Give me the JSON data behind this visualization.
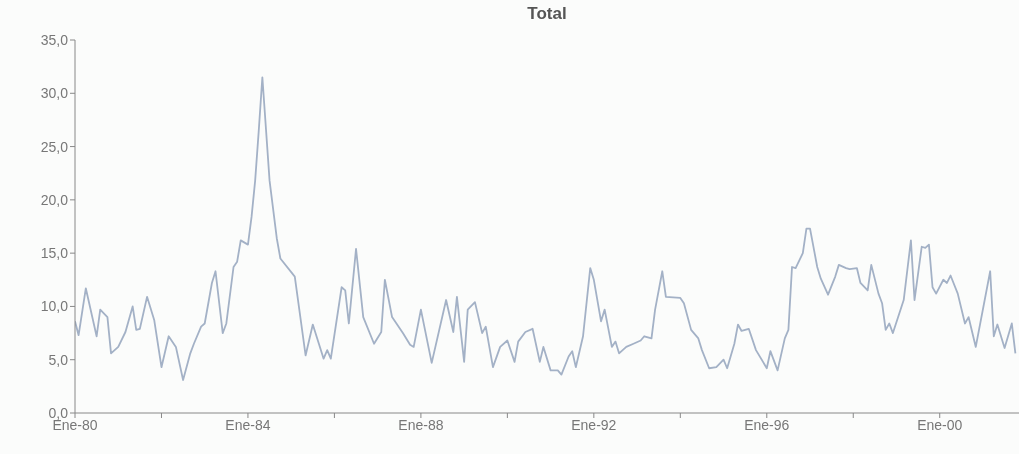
{
  "chart_data": {
    "type": "line",
    "title": "Total",
    "x": [
      "1980-01",
      "1980-02",
      "1980-04",
      "1980-07",
      "1980-08",
      "1980-10",
      "1980-11",
      "1981-01",
      "1981-03",
      "1981-05",
      "1981-06",
      "1981-07",
      "1981-09",
      "1981-11",
      "1982-01",
      "1982-03",
      "1982-05",
      "1982-07",
      "1982-09",
      "1982-10",
      "1982-12",
      "1983-01",
      "1983-03",
      "1983-04",
      "1983-06",
      "1983-07",
      "1983-09",
      "1983-10",
      "1983-11",
      "1984-01",
      "1984-02",
      "1984-03",
      "1984-04",
      "1984-05",
      "1984-07",
      "1984-09",
      "1984-10",
      "1985-02",
      "1985-05",
      "1985-07",
      "1985-10",
      "1985-11",
      "1985-12",
      "1986-03",
      "1986-04",
      "1986-05",
      "1986-07",
      "1986-09",
      "1986-12",
      "1987-02",
      "1987-03",
      "1987-05",
      "1987-08",
      "1987-10",
      "1987-11",
      "1988-01",
      "1988-04",
      "1988-08",
      "1988-10",
      "1988-11",
      "1989-01",
      "1989-02",
      "1989-04",
      "1989-06",
      "1989-07",
      "1989-09",
      "1989-11",
      "1990-01",
      "1990-03",
      "1990-04",
      "1990-06",
      "1990-08",
      "1990-10",
      "1990-11",
      "1991-01",
      "1991-03",
      "1991-04",
      "1991-06",
      "1991-07",
      "1991-08",
      "1991-10",
      "1991-12",
      "1992-01",
      "1992-03",
      "1992-04",
      "1992-06",
      "1992-07",
      "1992-08",
      "1992-10",
      "1992-12",
      "1993-02",
      "1993-03",
      "1993-05",
      "1993-06",
      "1993-08",
      "1993-09",
      "1994-01",
      "1994-02",
      "1994-04",
      "1994-06",
      "1994-07",
      "1994-09",
      "1994-11",
      "1995-01",
      "1995-02",
      "1995-04",
      "1995-05",
      "1995-06",
      "1995-08",
      "1995-10",
      "1996-01",
      "1996-02",
      "1996-04",
      "1996-06",
      "1996-07",
      "1996-08",
      "1996-09",
      "1996-11",
      "1996-12",
      "1997-01",
      "1997-03",
      "1997-04",
      "1997-06",
      "1997-08",
      "1997-09",
      "1997-11",
      "1997-12",
      "1998-02",
      "1998-03",
      "1998-05",
      "1998-06",
      "1998-08",
      "1998-09",
      "1998-10",
      "1998-11",
      "1998-12",
      "1999-03",
      "1999-05",
      "1999-06",
      "1999-08",
      "1999-09",
      "1999-10",
      "1999-11",
      "1999-12",
      "2000-02",
      "2000-03",
      "2000-04",
      "2000-06",
      "2000-08",
      "2000-09",
      "2000-11",
      "2001-03",
      "2001-04",
      "2001-05",
      "2001-07",
      "2001-09",
      "2001-10"
    ],
    "series": [
      {
        "color": "#a3b1c6",
        "values": [
          8.6,
          7.3,
          11.7,
          7.2,
          9.7,
          9.0,
          5.6,
          6.2,
          7.6,
          10.0,
          7.8,
          7.9,
          10.9,
          8.7,
          4.3,
          7.2,
          6.2,
          3.1,
          5.6,
          6.5,
          8.1,
          8.4,
          12.2,
          13.3,
          7.5,
          8.4,
          13.7,
          14.2,
          16.2,
          15.8,
          18.4,
          21.8,
          26.5,
          31.5,
          21.8,
          16.4,
          14.5,
          12.8,
          5.4,
          8.3,
          5.1,
          5.9,
          5.1,
          11.8,
          11.5,
          8.4,
          15.4,
          9.0,
          6.5,
          7.6,
          12.5,
          9.0,
          7.5,
          6.4,
          6.2,
          9.7,
          4.7,
          10.6,
          7.6,
          10.9,
          4.8,
          9.7,
          10.4,
          7.5,
          8.1,
          4.3,
          6.2,
          6.8,
          4.8,
          6.7,
          7.6,
          7.9,
          4.8,
          6.2,
          4.0,
          4.0,
          3.6,
          5.3,
          5.8,
          4.3,
          7.2,
          13.6,
          12.5,
          8.6,
          9.7,
          6.2,
          6.7,
          5.6,
          6.2,
          6.5,
          6.8,
          7.2,
          7.0,
          9.7,
          13.3,
          10.9,
          10.8,
          10.3,
          7.8,
          7.0,
          5.9,
          4.2,
          4.3,
          5.0,
          4.2,
          6.5,
          8.3,
          7.7,
          7.9,
          5.9,
          4.2,
          5.8,
          4.0,
          7.0,
          7.8,
          13.7,
          13.6,
          15.0,
          17.3,
          17.3,
          13.7,
          12.6,
          11.1,
          12.8,
          13.9,
          13.6,
          13.5,
          13.6,
          12.2,
          11.5,
          13.9,
          11.2,
          10.3,
          7.8,
          8.4,
          7.5,
          10.6,
          16.2,
          10.6,
          15.6,
          15.5,
          15.8,
          11.8,
          11.2,
          12.5,
          12.2,
          12.9,
          11.2,
          8.4,
          9.0,
          6.2,
          13.3,
          7.2,
          8.3,
          6.1,
          8.4,
          5.6
        ]
      }
    ],
    "xlim": [
      "1980-01",
      "2001-11"
    ],
    "xticks": [
      {
        "value": "1980-01",
        "label": "Ene-80"
      },
      {
        "value": "1982-01",
        "label": null
      },
      {
        "value": "1984-01",
        "label": "Ene-84"
      },
      {
        "value": "1986-01",
        "label": null
      },
      {
        "value": "1988-01",
        "label": "Ene-88"
      },
      {
        "value": "1990-01",
        "label": null
      },
      {
        "value": "1992-01",
        "label": "Ene-92"
      },
      {
        "value": "1994-01",
        "label": null
      },
      {
        "value": "1996-01",
        "label": "Ene-96"
      },
      {
        "value": "1998-01",
        "label": null
      },
      {
        "value": "2000-01",
        "label": "Ene-00"
      }
    ],
    "ylim": [
      0,
      35
    ],
    "yticks": [
      {
        "value": 0,
        "label": "0,0"
      },
      {
        "value": 5,
        "label": "5,0"
      },
      {
        "value": 10,
        "label": "10,0"
      },
      {
        "value": 15,
        "label": "15,0"
      },
      {
        "value": 20,
        "label": "20,0"
      },
      {
        "value": 25,
        "label": "25,0"
      },
      {
        "value": 30,
        "label": "30,0"
      },
      {
        "value": 35,
        "label": "35,0"
      }
    ],
    "grid": false,
    "legend": false,
    "marker": "none",
    "line_style": "solid"
  }
}
